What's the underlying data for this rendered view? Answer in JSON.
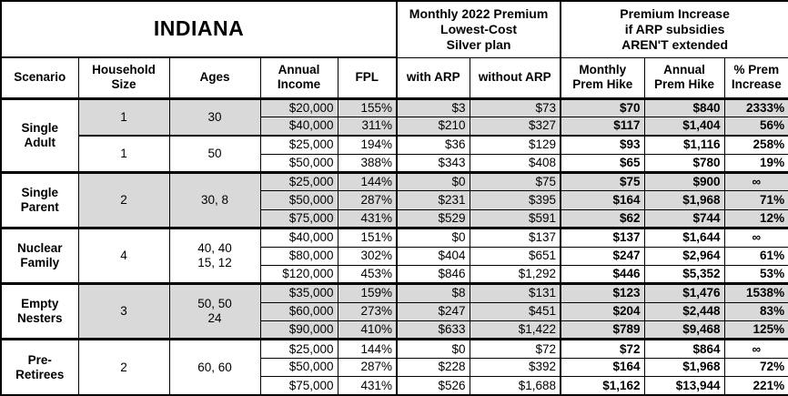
{
  "chart_data": {
    "type": "table",
    "title": "INDIANA",
    "sections": {
      "premium": "Monthly 2022 Premium\nLowest-Cost\nSilver plan",
      "increase": "Premium Increase\nif ARP subsidies\nAREN'T extended"
    },
    "columns": [
      "Scenario",
      "Household\nSize",
      "Ages",
      "Annual\nIncome",
      "FPL",
      "with ARP",
      "without ARP",
      "Monthly\nPrem Hike",
      "Annual\nPrem Hike",
      "% Prem\nIncrease"
    ],
    "groups": [
      {
        "scenario": "Single\nAdult",
        "subgroups": [
          {
            "household_size": "1",
            "ages": "30",
            "shaded": true,
            "rows": [
              [
                "$20,000",
                "155%",
                "$3",
                "$73",
                "$70",
                "$840",
                "2333%"
              ],
              [
                "$40,000",
                "311%",
                "$210",
                "$327",
                "$117",
                "$1,404",
                "56%"
              ]
            ]
          },
          {
            "household_size": "1",
            "ages": "50",
            "shaded": false,
            "rows": [
              [
                "$25,000",
                "194%",
                "$36",
                "$129",
                "$93",
                "$1,116",
                "258%"
              ],
              [
                "$50,000",
                "388%",
                "$343",
                "$408",
                "$65",
                "$780",
                "19%"
              ]
            ]
          }
        ]
      },
      {
        "scenario": "Single\nParent",
        "subgroups": [
          {
            "household_size": "2",
            "ages": "30, 8",
            "shaded": true,
            "rows": [
              [
                "$25,000",
                "144%",
                "$0",
                "$75",
                "$75",
                "$900",
                "∞"
              ],
              [
                "$50,000",
                "287%",
                "$231",
                "$395",
                "$164",
                "$1,968",
                "71%"
              ],
              [
                "$75,000",
                "431%",
                "$529",
                "$591",
                "$62",
                "$744",
                "12%"
              ]
            ]
          }
        ]
      },
      {
        "scenario": "Nuclear\nFamily",
        "subgroups": [
          {
            "household_size": "4",
            "ages": "40, 40\n15, 12",
            "shaded": false,
            "rows": [
              [
                "$40,000",
                "151%",
                "$0",
                "$137",
                "$137",
                "$1,644",
                "∞"
              ],
              [
                "$80,000",
                "302%",
                "$404",
                "$651",
                "$247",
                "$2,964",
                "61%"
              ],
              [
                "$120,000",
                "453%",
                "$846",
                "$1,292",
                "$446",
                "$5,352",
                "53%"
              ]
            ]
          }
        ]
      },
      {
        "scenario": "Empty\nNesters",
        "subgroups": [
          {
            "household_size": "3",
            "ages": "50, 50\n24",
            "shaded": true,
            "rows": [
              [
                "$35,000",
                "159%",
                "$8",
                "$131",
                "$123",
                "$1,476",
                "1538%"
              ],
              [
                "$60,000",
                "273%",
                "$247",
                "$451",
                "$204",
                "$2,448",
                "83%"
              ],
              [
                "$90,000",
                "410%",
                "$633",
                "$1,422",
                "$789",
                "$9,468",
                "125%"
              ]
            ]
          }
        ]
      },
      {
        "scenario": "Pre-\nRetirees",
        "subgroups": [
          {
            "household_size": "2",
            "ages": "60, 60",
            "shaded": false,
            "rows": [
              [
                "$25,000",
                "144%",
                "$0",
                "$72",
                "$72",
                "$864",
                "∞"
              ],
              [
                "$50,000",
                "287%",
                "$228",
                "$392",
                "$164",
                "$1,968",
                "72%"
              ],
              [
                "$75,000",
                "431%",
                "$526",
                "$1,688",
                "$1,162",
                "$13,944",
                "221%"
              ]
            ]
          }
        ]
      }
    ],
    "colors": {
      "shaded_row": "#d9d9d9",
      "border": "#000000",
      "background": "#ffffff"
    }
  }
}
